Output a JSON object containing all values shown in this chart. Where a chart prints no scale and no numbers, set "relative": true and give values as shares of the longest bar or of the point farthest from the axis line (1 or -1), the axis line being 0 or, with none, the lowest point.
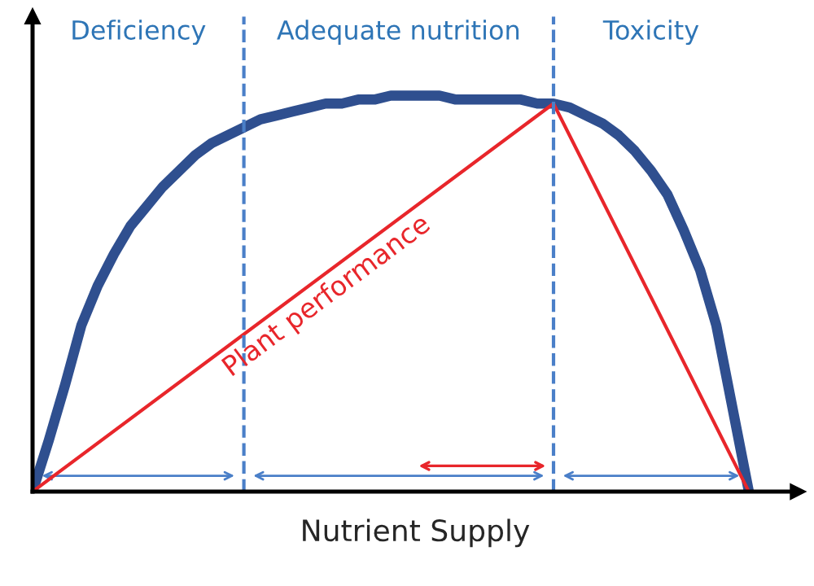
{
  "chart_data": {
    "type": "line",
    "relative": true,
    "xlabel": "Nutrient Supply",
    "tick_labels": false,
    "legend": false,
    "marker": "none",
    "line_style": "solid",
    "categories": [
      null,
      null,
      null,
      null,
      null,
      null,
      null,
      null,
      null,
      null,
      null,
      null,
      null,
      null,
      null,
      null,
      null,
      null,
      null,
      null,
      null,
      null,
      null,
      null,
      null,
      null,
      null,
      null,
      null,
      null,
      null,
      null,
      null,
      null,
      null,
      null,
      null,
      null,
      null,
      null,
      null,
      null,
      null,
      null,
      null
    ],
    "series": [
      {
        "color": "#2f4f8f",
        "values": [
          0,
          0.13,
          0.27,
          0.42,
          0.52,
          0.6,
          0.67,
          0.72,
          0.77,
          0.81,
          0.85,
          0.88,
          0.9,
          0.92,
          0.94,
          0.95,
          0.96,
          0.97,
          0.98,
          0.98,
          0.99,
          0.99,
          1.0,
          1.0,
          1.0,
          1.0,
          0.99,
          0.99,
          0.99,
          0.99,
          0.99,
          0.98,
          0.98,
          0.97,
          0.95,
          0.93,
          0.9,
          0.86,
          0.81,
          0.75,
          0.66,
          0.56,
          0.42,
          0.21,
          0
        ]
      },
      {
        "color": "#e8262b",
        "values": [
          0,
          null,
          null,
          null,
          null,
          null,
          null,
          null,
          null,
          null,
          null,
          null,
          null,
          null,
          null,
          null,
          null,
          null,
          null,
          null,
          null,
          null,
          null,
          null,
          null,
          null,
          null,
          null,
          null,
          null,
          null,
          null,
          0.98,
          null,
          null,
          null,
          null,
          null,
          null,
          null,
          null,
          null,
          null,
          null,
          0
        ]
      }
    ],
    "annotations": [
      "Deficiency",
      "Adequate nutrition",
      "Toxicity",
      "Plant performance"
    ]
  }
}
